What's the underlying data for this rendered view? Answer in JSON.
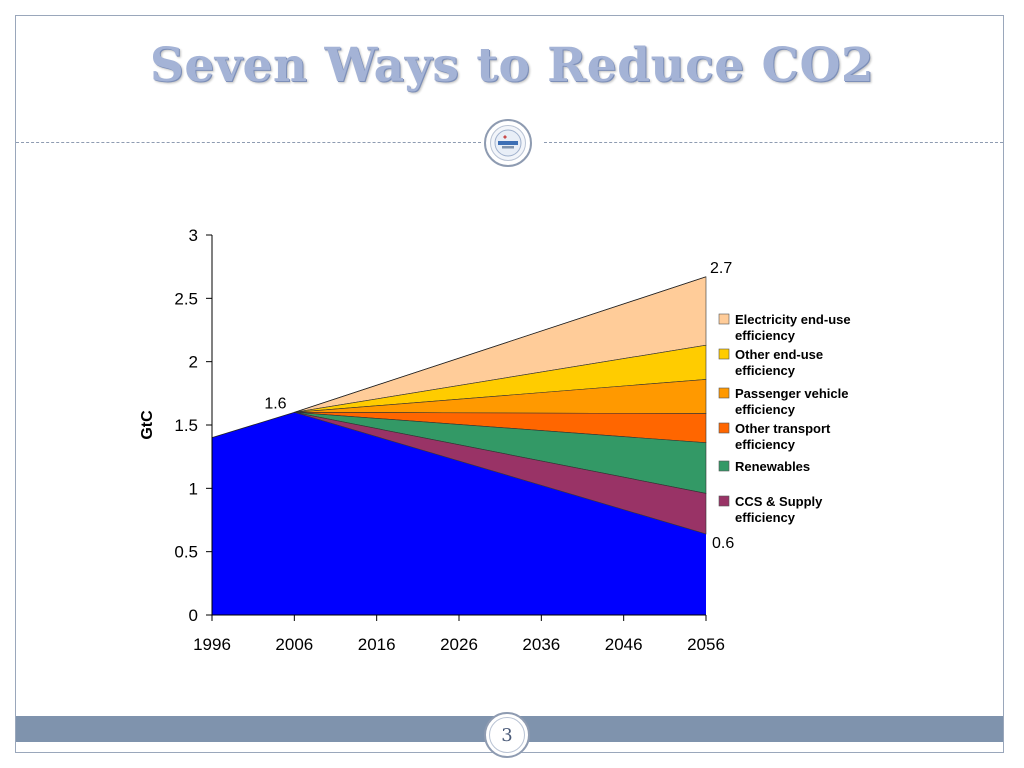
{
  "slide": {
    "title": "Seven Ways to Reduce CO2",
    "page_number": "3",
    "logo_icon": "public-citizen-texas-logo"
  },
  "chart_data": {
    "type": "area",
    "title": "",
    "xlabel": "",
    "ylabel": "GtC",
    "xlim": [
      1996,
      2056
    ],
    "ylim": [
      0,
      3
    ],
    "x_ticks": [
      "1996",
      "2006",
      "2016",
      "2026",
      "2036",
      "2046",
      "2056"
    ],
    "y_ticks": [
      "0",
      "0.5",
      "1",
      "1.5",
      "2",
      "2.5",
      "3"
    ],
    "baseline_area": {
      "color": "#0000ff",
      "x": [
        1996,
        2006,
        2056
      ],
      "y": [
        1.4,
        1.6,
        0.64
      ]
    },
    "wedges": {
      "origin": [
        2006,
        1.6
      ],
      "end_x": 2056,
      "bands": [
        {
          "name": "Electricity end-use efficiency",
          "lower": 2.13,
          "upper": 2.67,
          "color": "#ffcc99"
        },
        {
          "name": "Other end-use efficiency",
          "lower": 1.86,
          "upper": 2.13,
          "color": "#ffcc00"
        },
        {
          "name": "Passenger vehicle efficiency",
          "lower": 1.59,
          "upper": 1.86,
          "color": "#ff9900"
        },
        {
          "name": "Other transport efficiency",
          "lower": 1.36,
          "upper": 1.59,
          "color": "#ff6600"
        },
        {
          "name": "Renewables",
          "lower": 0.96,
          "upper": 1.36,
          "color": "#339966"
        },
        {
          "name": "CCS & Supply efficiency",
          "lower": 0.64,
          "upper": 0.96,
          "color": "#993366"
        }
      ]
    },
    "annotations": [
      {
        "text": "1.6",
        "x": 2006,
        "y": 1.6
      },
      {
        "text": "2.7",
        "x": 2056,
        "y": 2.67
      },
      {
        "text": "0.6",
        "x": 2056,
        "y": 0.64
      }
    ],
    "legend": {
      "placement": "right",
      "entries": [
        {
          "lines": [
            "Electricity end-use",
            "efficiency"
          ],
          "color": "#ffcc99"
        },
        {
          "lines": [
            "Other end-use",
            "efficiency"
          ],
          "color": "#ffcc00"
        },
        {
          "lines": [
            "Passenger vehicle",
            "efficiency"
          ],
          "color": "#ff9900"
        },
        {
          "lines": [
            "Other transport",
            "efficiency"
          ],
          "color": "#ff6600"
        },
        {
          "lines": [
            "Renewables"
          ],
          "color": "#339966"
        },
        {
          "lines": [
            "CCS & Supply",
            "efficiency"
          ],
          "color": "#993366"
        }
      ]
    }
  }
}
